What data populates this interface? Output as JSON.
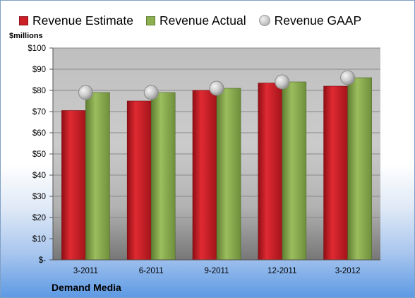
{
  "legend": [
    {
      "label": "Revenue Estimate",
      "icon": "red-square"
    },
    {
      "label": "Revenue Actual",
      "icon": "green-square"
    },
    {
      "label": "Revenue GAAP",
      "icon": "gray-circle"
    }
  ],
  "unit_label": "$millions",
  "company_label": "Demand Media",
  "colors": {
    "estimate": "#cc1f27",
    "actual": "#8db050",
    "gaap": "#c4c4c4"
  },
  "chart_data": {
    "type": "bar",
    "categories": [
      "3-2011",
      "6-2011",
      "9-2011",
      "12-2011",
      "3-2012"
    ],
    "series": [
      {
        "name": "Revenue Estimate",
        "values": [
          70.5,
          75,
          80,
          83.5,
          82
        ]
      },
      {
        "name": "Revenue Actual",
        "values": [
          79,
          79,
          81,
          84,
          86
        ]
      },
      {
        "name": "Revenue GAAP",
        "values": [
          79,
          79,
          81,
          84,
          86
        ],
        "marker": "circle"
      }
    ],
    "ylabel": "$millions",
    "ylim": [
      0,
      100
    ],
    "yticks": [
      0,
      10,
      20,
      30,
      40,
      50,
      60,
      70,
      80,
      90,
      100
    ],
    "ytick_labels": [
      "$-",
      "$10",
      "$20",
      "$30",
      "$40",
      "$50",
      "$60",
      "$70",
      "$80",
      "$90",
      "$100"
    ],
    "grid": true,
    "legend_position": "top"
  }
}
